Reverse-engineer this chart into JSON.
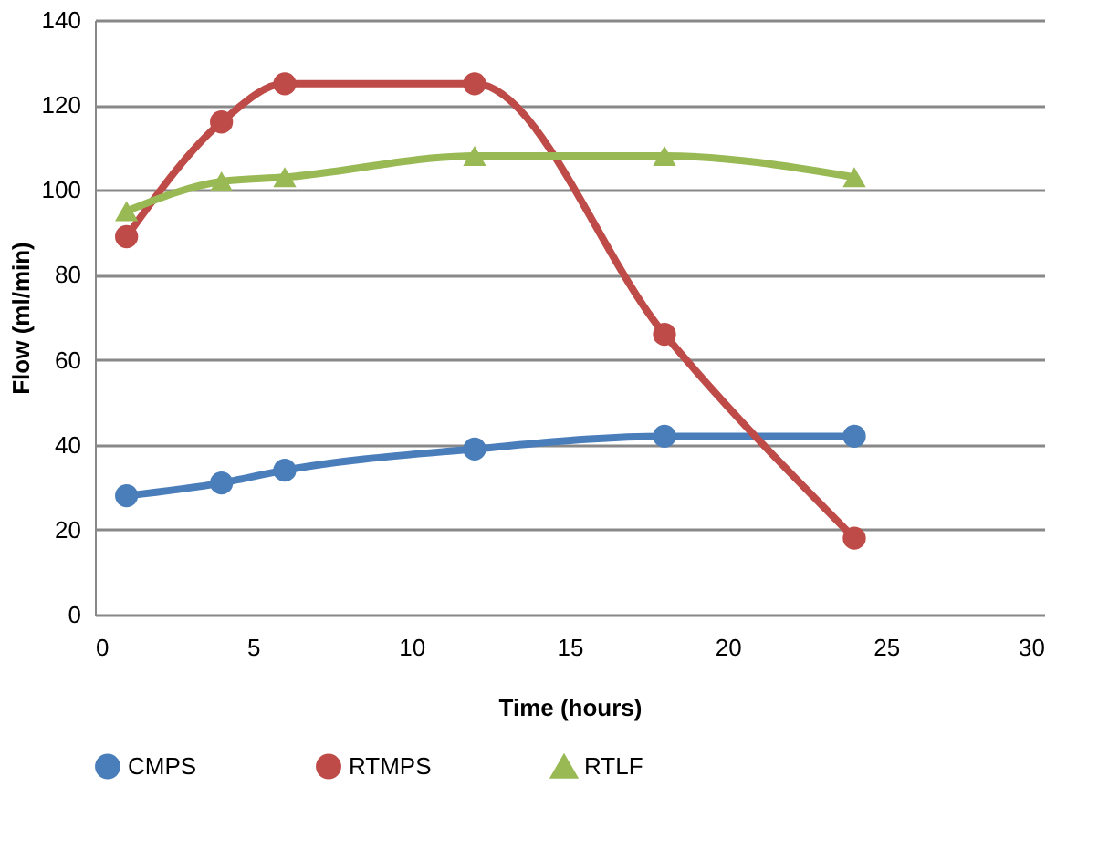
{
  "chart_data": {
    "type": "line",
    "xlabel": "Time (hours)",
    "ylabel": "Flow (ml/min)",
    "x": [
      1,
      4,
      6,
      12,
      18,
      24
    ],
    "series": [
      {
        "name": "CMPS",
        "color": "#4a7ebb",
        "values": [
          28,
          31,
          34,
          39,
          42,
          42
        ],
        "marker": "circle"
      },
      {
        "name": "RTMPS",
        "color": "#be4b48",
        "values": [
          89,
          116,
          125,
          125,
          66,
          18
        ],
        "marker": "circle"
      },
      {
        "name": "RTLF",
        "color": "#98b954",
        "values": [
          95,
          102,
          103,
          108,
          108,
          103
        ],
        "marker": "triangle"
      }
    ],
    "xlim": [
      0,
      30
    ],
    "xticks": [
      0,
      5,
      10,
      15,
      20,
      25,
      30
    ],
    "ylim": [
      0,
      140
    ],
    "yticks": [
      0,
      20,
      40,
      60,
      80,
      100,
      120,
      140
    ],
    "grid": "y",
    "legend": "bottom"
  }
}
